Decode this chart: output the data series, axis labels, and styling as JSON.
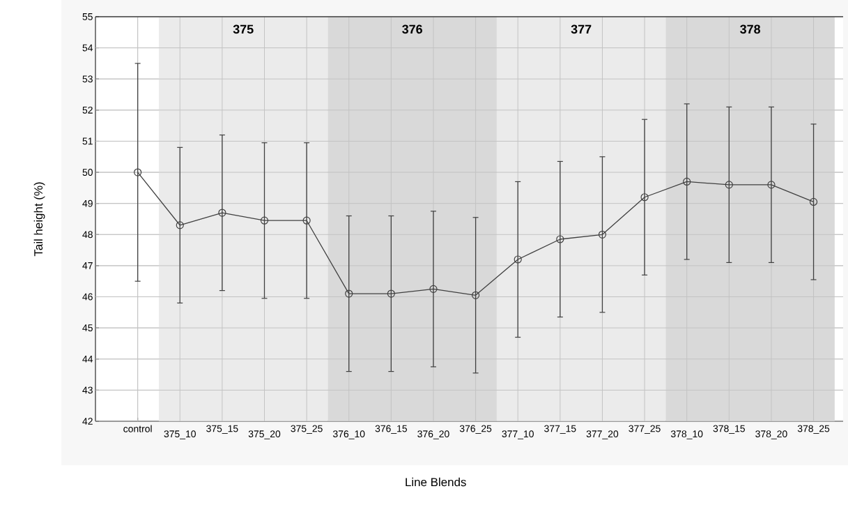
{
  "chart_data": {
    "type": "line",
    "xlabel": "Line Blends",
    "ylabel": "Tail height (%)",
    "categories": [
      "control",
      "375_10",
      "375_15",
      "375_20",
      "375_25",
      "376_10",
      "376_15",
      "376_20",
      "376_25",
      "377_10",
      "377_15",
      "377_20",
      "377_25",
      "378_10",
      "378_15",
      "378_20",
      "378_25"
    ],
    "values": [
      50.0,
      48.3,
      48.7,
      48.45,
      48.45,
      46.1,
      46.1,
      46.25,
      46.05,
      47.2,
      47.85,
      48.0,
      49.2,
      49.7,
      49.6,
      49.6,
      49.05
    ],
    "errors": [
      3.5,
      2.5,
      2.5,
      2.5,
      2.5,
      2.5,
      2.5,
      2.5,
      2.5,
      2.5,
      2.5,
      2.5,
      2.5,
      2.5,
      2.5,
      2.5,
      2.5
    ],
    "color": "#404040",
    "marker": "circle",
    "line_style": "solid",
    "grid": true,
    "ylim": [
      42,
      55
    ],
    "yticks": [
      42,
      43,
      44,
      45,
      46,
      47,
      48,
      49,
      50,
      51,
      52,
      53,
      54,
      55
    ],
    "bands": [
      {
        "axis": "x",
        "from": "375_10",
        "to": "375_25",
        "label": "375",
        "color": "#ebebeb"
      },
      {
        "axis": "x",
        "from": "376_10",
        "to": "376_25",
        "label": "376",
        "color": "#d9d9d9"
      },
      {
        "axis": "x",
        "from": "377_10",
        "to": "377_25",
        "label": "377",
        "color": "#ebebeb"
      },
      {
        "axis": "x",
        "from": "378_10",
        "to": "378_25",
        "label": "378",
        "color": "#d9d9d9"
      }
    ]
  }
}
